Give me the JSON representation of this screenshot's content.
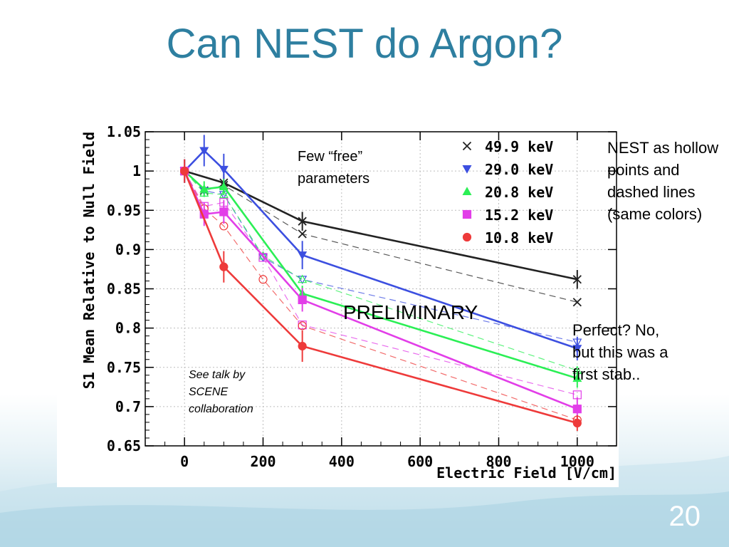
{
  "slide": {
    "title": "Can NEST do Argon?",
    "note_right": "NEST as hollow\npoints and\ndashed lines\n(same colors)",
    "note_bottom": "Perfect? No,\nbut this was a\nfirst stab..",
    "slide_number": "20"
  },
  "chart_data": {
    "type": "line",
    "xlabel": "Electric Field [V/cm]",
    "ylabel": "S1 Mean Relative to Null Field",
    "xlim": [
      -100,
      1100
    ],
    "ylim": [
      0.65,
      1.05
    ],
    "xticks": [
      0,
      200,
      400,
      600,
      800,
      1000
    ],
    "yticks": [
      0.65,
      0.7,
      0.75,
      0.8,
      0.85,
      0.9,
      0.95,
      1,
      1.05
    ],
    "ytick_labels": [
      "0.65",
      "0.7",
      "0.75",
      "0.8",
      "0.85",
      "0.9",
      "0.95",
      "1",
      "1.05"
    ],
    "grid": true,
    "legend_position": "top-right",
    "annotations": {
      "free_params": "Few “free”\nparameters",
      "preliminary": "PRELIMINARY",
      "scene": "See talk by\nSCENE\ncollaboration"
    },
    "series": [
      {
        "name": "49.9 keV",
        "color": "#222222",
        "marker": "x",
        "x": [
          0,
          100,
          300,
          1000
        ],
        "y": [
          1.0,
          0.985,
          0.936,
          0.862
        ],
        "err": [
          0.015,
          0.012,
          0.012,
          0.012
        ],
        "nest_x": [
          0,
          50,
          100,
          300,
          1000
        ],
        "nest_y": [
          1.0,
          0.975,
          0.982,
          0.92,
          0.833
        ]
      },
      {
        "name": "29.0 keV",
        "color": "#3c4fe0",
        "marker": "triangle-down",
        "x": [
          0,
          50,
          100,
          300,
          1000
        ],
        "y": [
          1.0,
          1.026,
          1.002,
          0.893,
          0.774
        ],
        "err": [
          0.015,
          0.02,
          0.02,
          0.018,
          0.015
        ],
        "nest_x": [
          0,
          50,
          100,
          200,
          300,
          1000
        ],
        "nest_y": [
          1.0,
          0.975,
          0.97,
          0.89,
          0.862,
          0.782
        ]
      },
      {
        "name": "20.8 keV",
        "color": "#2bef55",
        "marker": "triangle-up",
        "x": [
          0,
          50,
          100,
          300,
          1000
        ],
        "y": [
          1.0,
          0.977,
          0.98,
          0.844,
          0.736
        ],
        "err": [
          0.01,
          0.01,
          0.01,
          0.01,
          0.012
        ],
        "nest_x": [
          0,
          50,
          100,
          200,
          300,
          1000
        ],
        "nest_y": [
          1.0,
          0.972,
          0.97,
          0.892,
          0.862,
          0.746
        ]
      },
      {
        "name": "15.2 keV",
        "color": "#e23ee8",
        "marker": "square",
        "x": [
          0,
          50,
          100,
          300,
          1000
        ],
        "y": [
          1.0,
          0.945,
          0.948,
          0.836,
          0.697
        ],
        "err": [
          0.01,
          0.015,
          0.015,
          0.015,
          0.015
        ],
        "nest_x": [
          0,
          50,
          100,
          200,
          300,
          1000
        ],
        "nest_y": [
          1.0,
          0.955,
          0.96,
          0.89,
          0.804,
          0.715
        ]
      },
      {
        "name": "10.8 keV",
        "color": "#ee3a3a",
        "marker": "circle",
        "x": [
          0,
          100,
          300,
          1000
        ],
        "y": [
          1.0,
          0.878,
          0.777,
          0.679
        ],
        "err": [
          0.015,
          0.02,
          0.02,
          0.01
        ],
        "nest_x": [
          0,
          50,
          100,
          200,
          300,
          1000
        ],
        "nest_y": [
          1.0,
          0.952,
          0.93,
          0.862,
          0.803,
          0.683
        ]
      }
    ]
  }
}
